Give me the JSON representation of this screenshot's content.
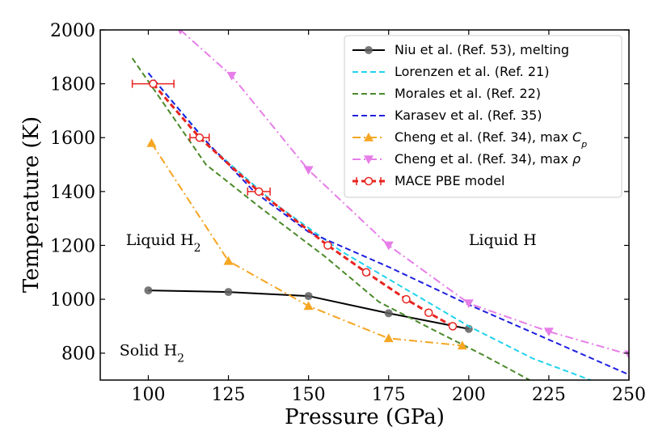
{
  "chart_data": {
    "type": "line",
    "xlabel": "Pressure (GPa)",
    "ylabel": "Temperature (K)",
    "xlim": [
      85,
      250
    ],
    "ylim": [
      700,
      2000
    ],
    "xticks": [
      100,
      125,
      150,
      175,
      200,
      225,
      250
    ],
    "yticks": [
      800,
      1000,
      1200,
      1400,
      1600,
      1800,
      2000
    ],
    "grid": false,
    "legend_position": "top-right",
    "annotations": [
      {
        "text": "Liquid H",
        "sub": "2",
        "x": 93,
        "y": 1220
      },
      {
        "text": "Liquid H",
        "sub": "",
        "x": 200,
        "y": 1220
      },
      {
        "text": "Solid H",
        "sub": "2",
        "x": 91,
        "y": 810
      }
    ],
    "series": [
      {
        "name": "Niu et al. (Ref. 53), melting",
        "color": "#000000",
        "style": "solid",
        "marker": "circle-gray",
        "x": [
          100,
          125,
          150,
          175,
          200
        ],
        "y": [
          1033,
          1027,
          1012,
          948,
          890
        ]
      },
      {
        "name": "Lorenzen et al. (Ref. 21)",
        "color": "#22d3ee",
        "style": "dashed",
        "marker": "none",
        "x": [
          100,
          120,
          140,
          160,
          180,
          200,
          220,
          238
        ],
        "y": [
          1840,
          1560,
          1350,
          1180,
          1040,
          900,
          780,
          700
        ]
      },
      {
        "name": "Morales et al. (Ref. 22)",
        "color": "#4a8a2a",
        "style": "dashed",
        "marker": "none",
        "x": [
          95,
          118,
          135,
          155,
          172,
          190,
          205,
          219
        ],
        "y": [
          1895,
          1500,
          1340,
          1160,
          990,
          880,
          790,
          700
        ]
      },
      {
        "name": "Karasev et al. (Ref. 35)",
        "color": "#1f1fe0",
        "style": "dashed",
        "marker": "none",
        "x": [
          100,
          117,
          133,
          150,
          175,
          200,
          225,
          250
        ],
        "y": [
          1840,
          1600,
          1400,
          1250,
          1120,
          980,
          850,
          720
        ]
      },
      {
        "name": "Cheng et al. (Ref. 34), max ",
        "math": "C",
        "math_sub": "p",
        "color": "#f5a623",
        "style": "dashdot",
        "marker": "triangle-up",
        "x": [
          101,
          125,
          150,
          175,
          198
        ],
        "y": [
          1580,
          1142,
          975,
          855,
          828
        ]
      },
      {
        "name": "Cheng et al. (Ref. 34), max ",
        "math": "ρ",
        "math_sub": "",
        "color": "#e67ee8",
        "style": "dashdot",
        "marker": "triangle-down",
        "x": [
          110,
          126,
          150,
          175,
          200,
          225,
          250
        ],
        "y": [
          2000,
          1830,
          1480,
          1200,
          985,
          880,
          795
        ]
      },
      {
        "name": "MACE PBE model",
        "color": "#e8231f",
        "style": "dashed-thick",
        "marker": "open-circle",
        "x": [
          101.5,
          116,
          134.5,
          156,
          168,
          180.5,
          187.5,
          195
        ],
        "y": [
          1800,
          1600,
          1400,
          1200,
          1100,
          1000,
          950,
          900
        ],
        "xerr": [
          6.5,
          3,
          3.5,
          0,
          0,
          0,
          0,
          0
        ]
      }
    ]
  }
}
